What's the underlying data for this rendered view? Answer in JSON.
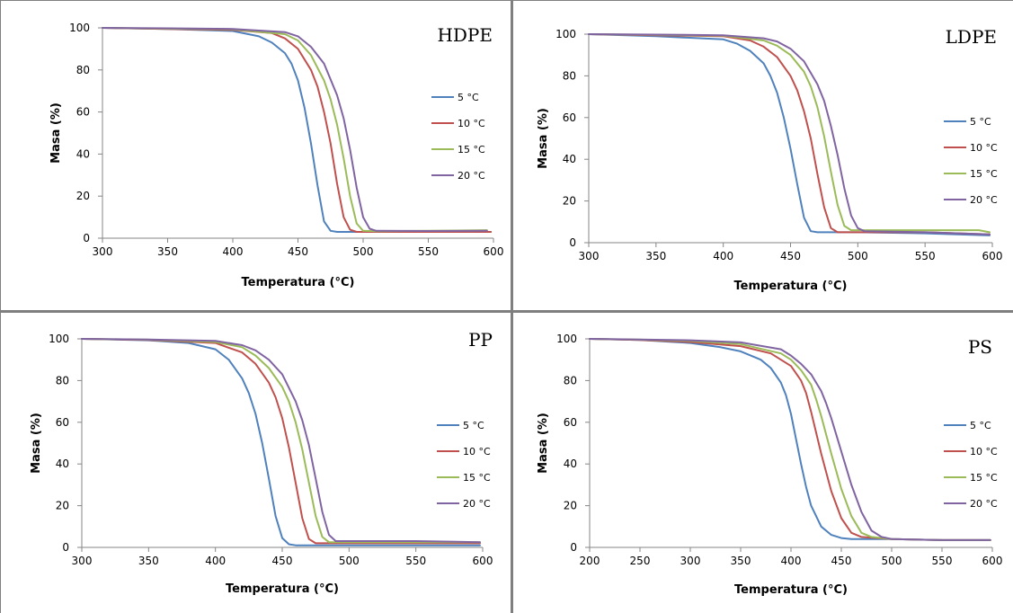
{
  "colors": {
    "5": "#4f81bd",
    "10": "#c0504d",
    "15": "#9bbb59",
    "20": "#8064a2"
  },
  "chart_data": [
    {
      "type": "line",
      "title": "HDPE",
      "xlabel": "Temperatura (°C)",
      "ylabel": "Masa (%)",
      "xlim": [
        300,
        600
      ],
      "ylim": [
        0,
        100
      ],
      "xticks": [
        300,
        350,
        400,
        450,
        500,
        550,
        600
      ],
      "yticks": [
        0,
        20,
        40,
        60,
        80,
        100
      ],
      "legend_position": "right",
      "series": [
        {
          "name": "5 °C",
          "color_key": "5",
          "x": [
            300,
            350,
            400,
            420,
            430,
            440,
            445,
            450,
            455,
            460,
            465,
            470,
            475,
            480,
            490,
            500,
            550,
            598
          ],
          "y": [
            100,
            99.5,
            98.5,
            96,
            93,
            88,
            83,
            75,
            62,
            45,
            25,
            8,
            3.5,
            3,
            3,
            3,
            3,
            3
          ]
        },
        {
          "name": "10 °C",
          "color_key": "10",
          "x": [
            300,
            350,
            400,
            430,
            440,
            450,
            460,
            465,
            470,
            475,
            480,
            485,
            490,
            495,
            500,
            550,
            598
          ],
          "y": [
            100,
            99.5,
            99,
            97.5,
            95,
            90,
            80,
            72,
            60,
            45,
            26,
            10,
            4,
            3,
            3,
            3,
            3
          ]
        },
        {
          "name": "15 °C",
          "color_key": "15",
          "x": [
            300,
            350,
            400,
            440,
            450,
            460,
            470,
            475,
            480,
            485,
            490,
            495,
            500,
            510,
            550,
            595
          ],
          "y": [
            100,
            99.6,
            99.3,
            97,
            94,
            87,
            75,
            66,
            54,
            38,
            20,
            7,
            3.5,
            3.3,
            3.5,
            3.8
          ]
        },
        {
          "name": "20 °C",
          "color_key": "20",
          "x": [
            300,
            350,
            400,
            440,
            450,
            460,
            470,
            480,
            485,
            490,
            495,
            500,
            505,
            510,
            550,
            595
          ],
          "y": [
            100,
            99.8,
            99.5,
            98,
            96,
            91,
            83,
            68,
            57,
            42,
            24,
            10,
            4.5,
            3.5,
            3.4,
            3.5
          ]
        }
      ]
    },
    {
      "type": "line",
      "title": "LDPE",
      "xlabel": "Temperatura (°C)",
      "ylabel": "Masa (%)",
      "xlim": [
        300,
        600
      ],
      "ylim": [
        0,
        100
      ],
      "xticks": [
        300,
        350,
        400,
        450,
        500,
        550,
        600
      ],
      "yticks": [
        0,
        20,
        40,
        60,
        80,
        100
      ],
      "legend_position": "right",
      "series": [
        {
          "name": "5 °C",
          "color_key": "5",
          "x": [
            300,
            350,
            400,
            410,
            420,
            430,
            435,
            440,
            445,
            450,
            455,
            460,
            465,
            470,
            480,
            500,
            550,
            598
          ],
          "y": [
            100,
            99,
            97.5,
            95.5,
            92,
            86,
            80,
            72,
            60,
            45,
            28,
            12,
            5.5,
            5,
            5,
            5,
            4.5,
            3.5
          ]
        },
        {
          "name": "10 °C",
          "color_key": "10",
          "x": [
            300,
            350,
            400,
            420,
            430,
            440,
            450,
            455,
            460,
            465,
            470,
            475,
            480,
            485,
            490,
            500,
            550,
            598
          ],
          "y": [
            100,
            99.5,
            99,
            97,
            94,
            89,
            80,
            73,
            63,
            50,
            33,
            17,
            7,
            5,
            5,
            5,
            5,
            4
          ]
        },
        {
          "name": "15 °C",
          "color_key": "15",
          "x": [
            300,
            350,
            400,
            430,
            440,
            450,
            460,
            465,
            470,
            475,
            480,
            485,
            490,
            495,
            500,
            550,
            590,
            598
          ],
          "y": [
            100,
            99.7,
            99.3,
            97,
            94.5,
            90,
            82,
            75,
            65,
            51,
            34,
            18,
            8,
            6,
            6,
            6,
            6,
            5
          ]
        },
        {
          "name": "20 °C",
          "color_key": "20",
          "x": [
            300,
            350,
            400,
            430,
            440,
            450,
            460,
            470,
            475,
            480,
            485,
            490,
            495,
            500,
            505,
            550,
            598
          ],
          "y": [
            100,
            99.8,
            99.5,
            98,
            96.5,
            93,
            87,
            76,
            68,
            56,
            42,
            26,
            13,
            7,
            5.5,
            5,
            4
          ]
        }
      ]
    },
    {
      "type": "line",
      "title": "PP",
      "xlabel": "Temperatura (°C)",
      "ylabel": "Masa (%)",
      "xlim": [
        300,
        600
      ],
      "ylim": [
        0,
        100
      ],
      "xticks": [
        300,
        350,
        400,
        450,
        500,
        550,
        600
      ],
      "yticks": [
        0,
        20,
        40,
        60,
        80,
        100
      ],
      "legend_position": "right",
      "series": [
        {
          "name": "5 °C",
          "color_key": "5",
          "x": [
            300,
            350,
            380,
            400,
            410,
            420,
            425,
            430,
            435,
            440,
            445,
            450,
            455,
            460,
            470,
            500,
            550,
            598
          ],
          "y": [
            100,
            99.3,
            98,
            95,
            90,
            81,
            74,
            64,
            50,
            33,
            15,
            4.5,
            1.5,
            1,
            1,
            1,
            1,
            1
          ]
        },
        {
          "name": "10 °C",
          "color_key": "10",
          "x": [
            300,
            350,
            400,
            420,
            430,
            440,
            445,
            450,
            455,
            460,
            465,
            470,
            475,
            480,
            500,
            550,
            598
          ],
          "y": [
            100,
            99.5,
            98,
            93.5,
            88,
            79,
            72,
            62,
            48,
            31,
            14,
            4,
            2,
            2,
            2,
            2,
            2
          ]
        },
        {
          "name": "15 °C",
          "color_key": "15",
          "x": [
            300,
            350,
            400,
            420,
            430,
            440,
            450,
            455,
            460,
            465,
            470,
            475,
            480,
            485,
            500,
            550,
            598
          ],
          "y": [
            100,
            99.6,
            98.5,
            96,
            92,
            86,
            77,
            70,
            60,
            47,
            31,
            15,
            5,
            2.5,
            2.5,
            2.5,
            2.5
          ]
        },
        {
          "name": "20 °C",
          "color_key": "20",
          "x": [
            300,
            350,
            400,
            420,
            430,
            440,
            450,
            460,
            465,
            470,
            475,
            480,
            485,
            490,
            500,
            550,
            598
          ],
          "y": [
            100,
            99.7,
            99,
            97,
            94.5,
            90,
            83,
            70,
            61,
            49,
            33,
            17,
            6,
            3,
            3,
            3,
            2.5
          ]
        }
      ]
    },
    {
      "type": "line",
      "title": "PS",
      "xlabel": "Temperatura (°C)",
      "ylabel": "Masa (%)",
      "xlim": [
        200,
        600
      ],
      "ylim": [
        0,
        100
      ],
      "xticks": [
        200,
        250,
        300,
        350,
        400,
        450,
        500,
        550,
        600
      ],
      "yticks": [
        0,
        20,
        40,
        60,
        80,
        100
      ],
      "legend_position": "right",
      "series": [
        {
          "name": "5 °C",
          "color_key": "5",
          "x": [
            200,
            250,
            300,
            330,
            350,
            370,
            380,
            390,
            395,
            400,
            405,
            410,
            415,
            420,
            430,
            440,
            450,
            460,
            500,
            550,
            598
          ],
          "y": [
            100,
            99.5,
            98,
            96,
            94,
            90,
            86,
            79,
            73,
            64,
            52,
            40,
            29,
            20,
            10,
            6,
            4.5,
            4,
            4,
            3.5,
            3.5
          ]
        },
        {
          "name": "10 °C",
          "color_key": "10",
          "x": [
            200,
            250,
            300,
            350,
            380,
            400,
            410,
            415,
            420,
            425,
            430,
            440,
            450,
            460,
            470,
            500,
            550,
            598
          ],
          "y": [
            100,
            99.5,
            98.5,
            96.5,
            93,
            87,
            80,
            74,
            65,
            55,
            45,
            27,
            14,
            7,
            5,
            4,
            3.5,
            3.5
          ]
        },
        {
          "name": "15 °C",
          "color_key": "15",
          "x": [
            200,
            250,
            300,
            350,
            390,
            400,
            410,
            420,
            425,
            430,
            435,
            440,
            450,
            460,
            470,
            480,
            500,
            550,
            598
          ],
          "y": [
            100,
            99.6,
            99,
            97.5,
            93,
            90,
            85,
            78,
            71,
            63,
            54,
            45,
            28,
            15,
            7,
            5,
            4,
            3.5,
            3.5
          ]
        },
        {
          "name": "20 °C",
          "color_key": "20",
          "x": [
            200,
            250,
            300,
            350,
            390,
            400,
            410,
            420,
            430,
            435,
            440,
            445,
            450,
            460,
            470,
            480,
            490,
            500,
            550,
            598
          ],
          "y": [
            100,
            99.7,
            99.3,
            98.3,
            95,
            92,
            88,
            83,
            75,
            69,
            62,
            54,
            46,
            30,
            17,
            8,
            5,
            4,
            3.5,
            3.5
          ]
        }
      ]
    }
  ]
}
